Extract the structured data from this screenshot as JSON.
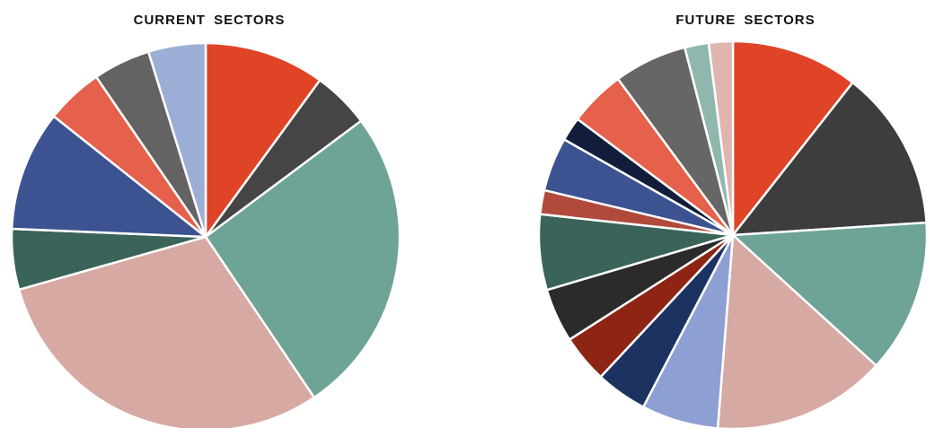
{
  "chart_data": [
    {
      "type": "pie",
      "title": "CURRENT SECTORS",
      "start_angle_deg": 0,
      "direction": "clockwise",
      "slices": [
        {
          "value": 10.5,
          "color": "#e04427"
        },
        {
          "value": 5.0,
          "color": "#454545"
        },
        {
          "value": 27.0,
          "color": "#6ea397"
        },
        {
          "value": 31.5,
          "color": "#d6a9a3"
        },
        {
          "value": 5.3,
          "color": "#3a6459"
        },
        {
          "value": 10.5,
          "color": "#3c5291"
        },
        {
          "value": 5.0,
          "color": "#e5614b"
        },
        {
          "value": 5.0,
          "color": "#636363"
        },
        {
          "value": 5.0,
          "color": "#9daed6"
        }
      ]
    },
    {
      "type": "pie",
      "title": "FUTURE SECTORS",
      "start_angle_deg": 0,
      "direction": "clockwise",
      "slices": [
        {
          "value": 10.6,
          "color": "#e04427"
        },
        {
          "value": 13.4,
          "color": "#3d3d3d"
        },
        {
          "value": 12.8,
          "color": "#6ea397"
        },
        {
          "value": 14.5,
          "color": "#d6a9a3"
        },
        {
          "value": 6.4,
          "color": "#8d9fd3"
        },
        {
          "value": 4.3,
          "color": "#1c3260"
        },
        {
          "value": 4.0,
          "color": "#8e2414"
        },
        {
          "value": 4.5,
          "color": "#2b2b2b"
        },
        {
          "value": 6.3,
          "color": "#3a6459"
        },
        {
          "value": 2.0,
          "color": "#b14a3c"
        },
        {
          "value": 4.5,
          "color": "#3c5291"
        },
        {
          "value": 2.0,
          "color": "#111d3a"
        },
        {
          "value": 4.7,
          "color": "#e5614b"
        },
        {
          "value": 6.1,
          "color": "#666666"
        },
        {
          "value": 2.0,
          "color": "#8fb7ad"
        },
        {
          "value": 2.0,
          "color": "#e0b5b0"
        }
      ]
    }
  ]
}
